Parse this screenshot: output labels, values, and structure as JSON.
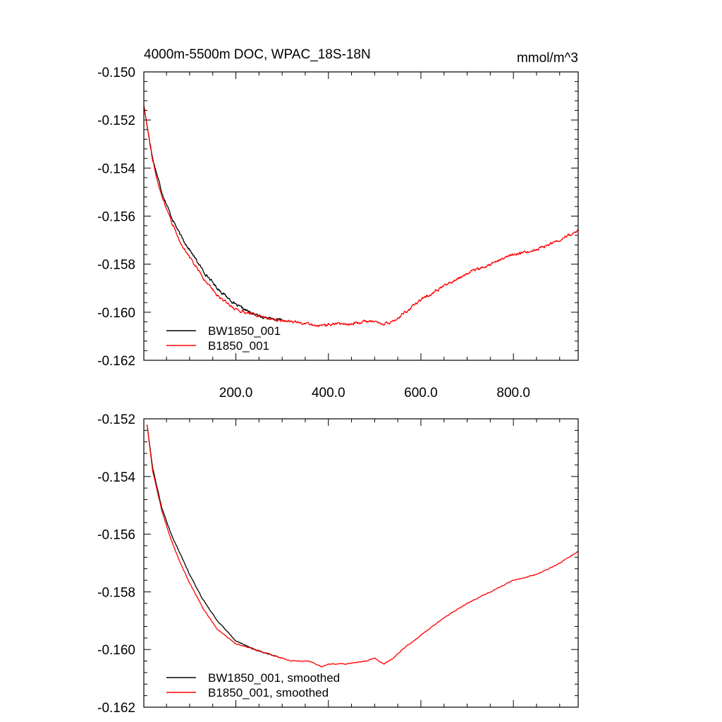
{
  "colors": {
    "series_a": "#000000",
    "series_b": "#ff0000"
  },
  "chart_data": [
    {
      "type": "line",
      "title": "4000m-5500m DOC, WPAC_18S-18N",
      "units": "mmol/m^3",
      "xlabel": "",
      "ylabel": "",
      "xlim": [
        1,
        940
      ],
      "ylim": [
        -0.162,
        -0.15
      ],
      "x_ticks": [
        200,
        400,
        600,
        800
      ],
      "x_tick_labels": [
        "200.0",
        "400.0",
        "600.0",
        "800.0"
      ],
      "y_ticks": [
        -0.162,
        -0.16,
        -0.158,
        -0.156,
        -0.154,
        -0.152,
        -0.15
      ],
      "y_tick_labels": [
        "-0.162",
        "-0.160",
        "-0.158",
        "-0.156",
        "-0.154",
        "-0.152",
        "-0.150"
      ],
      "legend_position": "bottom-left",
      "noise": 4.5e-05,
      "series": [
        {
          "name": "BW1850_001",
          "color": "#000000",
          "x": [
            1,
            20,
            40,
            60,
            80,
            100,
            130,
            160,
            200,
            240,
            280,
            300
          ],
          "y": [
            -0.1514,
            -0.1536,
            -0.155,
            -0.156,
            -0.1568,
            -0.1574,
            -0.1583,
            -0.159,
            -0.1597,
            -0.1601,
            -0.1603,
            -0.1603
          ]
        },
        {
          "name": "B1850_001",
          "color": "#ff0000",
          "x": [
            1,
            20,
            40,
            60,
            80,
            100,
            130,
            160,
            200,
            240,
            280,
            320,
            360,
            385,
            400,
            440,
            480,
            500,
            520,
            540,
            560,
            600,
            650,
            700,
            750,
            800,
            850,
            900,
            940
          ],
          "y": [
            -0.1514,
            -0.1537,
            -0.1552,
            -0.1562,
            -0.1571,
            -0.1577,
            -0.1586,
            -0.1593,
            -0.1599,
            -0.1601,
            -0.1603,
            -0.1604,
            -0.1605,
            -0.1606,
            -0.1605,
            -0.1605,
            -0.1604,
            -0.1604,
            -0.1605,
            -0.1604,
            -0.1601,
            -0.1595,
            -0.1589,
            -0.1584,
            -0.158,
            -0.1576,
            -0.1574,
            -0.157,
            -0.1566
          ]
        }
      ]
    },
    {
      "type": "line",
      "title": "",
      "xlabel": "",
      "ylabel": "",
      "xlim": [
        1,
        940
      ],
      "ylim": [
        -0.162,
        -0.152
      ],
      "x_ticks": [
        200,
        400,
        600,
        800
      ],
      "x_tick_labels": [],
      "y_ticks": [
        -0.162,
        -0.16,
        -0.158,
        -0.156,
        -0.154,
        -0.152
      ],
      "y_tick_labels": [
        "-0.162",
        "-0.160",
        "-0.158",
        "-0.156",
        "-0.154",
        "-0.152"
      ],
      "legend_position": "bottom-left",
      "noise": 1.2e-05,
      "series": [
        {
          "name": "BW1850_001, smoothed",
          "color": "#000000",
          "x": [
            8,
            20,
            40,
            60,
            80,
            100,
            130,
            160,
            200,
            240,
            280,
            300
          ],
          "y": [
            -0.1522,
            -0.1537,
            -0.1551,
            -0.156,
            -0.1567,
            -0.1574,
            -0.1583,
            -0.159,
            -0.1597,
            -0.16,
            -0.1602,
            -0.1603
          ]
        },
        {
          "name": "B1850_001, smoothed",
          "color": "#ff0000",
          "x": [
            8,
            20,
            40,
            60,
            80,
            100,
            130,
            160,
            200,
            240,
            280,
            320,
            360,
            385,
            400,
            440,
            480,
            500,
            520,
            540,
            560,
            600,
            650,
            700,
            750,
            800,
            850,
            900,
            940
          ],
          "y": [
            -0.1522,
            -0.1538,
            -0.1552,
            -0.1562,
            -0.157,
            -0.1577,
            -0.1586,
            -0.1593,
            -0.1598,
            -0.16,
            -0.1602,
            -0.1604,
            -0.1604,
            -0.1606,
            -0.1605,
            -0.1605,
            -0.1604,
            -0.1603,
            -0.1605,
            -0.1603,
            -0.16,
            -0.1595,
            -0.1589,
            -0.1584,
            -0.158,
            -0.1576,
            -0.1574,
            -0.157,
            -0.1566
          ]
        }
      ]
    }
  ]
}
